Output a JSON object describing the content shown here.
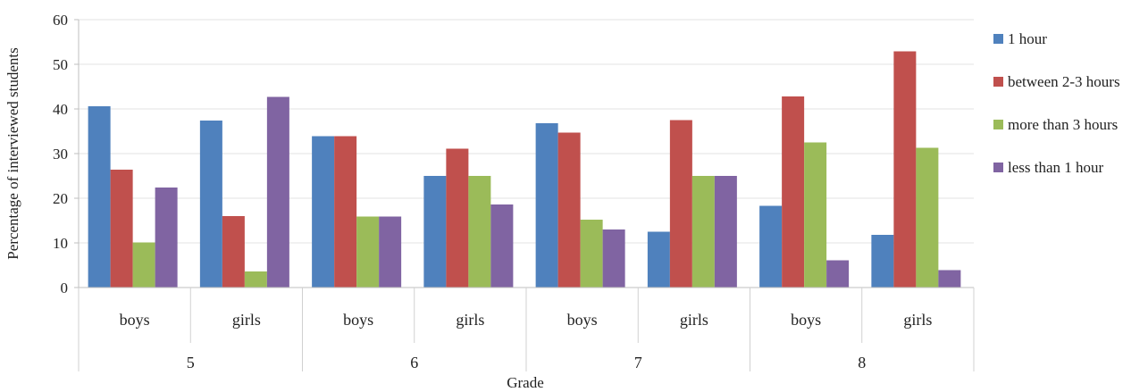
{
  "chart_data": {
    "type": "bar",
    "title": "",
    "xlabel": "Grade",
    "ylabel": "Percentage of interviewed students",
    "ylim": [
      0,
      60
    ],
    "yticks": [
      0,
      10,
      20,
      30,
      40,
      50,
      60
    ],
    "grid": true,
    "legend_position": "right",
    "groups": [
      {
        "label": "5",
        "categories": [
          "boys",
          "girls"
        ]
      },
      {
        "label": "6",
        "categories": [
          "boys",
          "girls"
        ]
      },
      {
        "label": "7",
        "categories": [
          "boys",
          "girls"
        ]
      },
      {
        "label": "8",
        "categories": [
          "boys",
          "girls"
        ]
      }
    ],
    "categories": [
      "boys",
      "girls",
      "boys",
      "girls",
      "boys",
      "girls",
      "boys",
      "girls"
    ],
    "series": [
      {
        "name": "1 hour",
        "color": "#4F81BD",
        "values": [
          40.6,
          37.4,
          33.9,
          25.0,
          36.8,
          12.5,
          18.3,
          11.8
        ]
      },
      {
        "name": "between 2-3 hours",
        "color": "#C0504D",
        "values": [
          26.4,
          16.0,
          33.9,
          31.1,
          34.7,
          37.5,
          42.8,
          52.9
        ]
      },
      {
        "name": "more than 3 hours",
        "color": "#9BBB59",
        "values": [
          10.1,
          3.6,
          15.9,
          25.0,
          15.2,
          25.0,
          32.5,
          31.3
        ]
      },
      {
        "name": "less than 1 hour",
        "color": "#8064A2",
        "values": [
          22.4,
          42.7,
          15.9,
          18.6,
          13.0,
          25.0,
          6.1,
          3.9
        ]
      }
    ]
  }
}
